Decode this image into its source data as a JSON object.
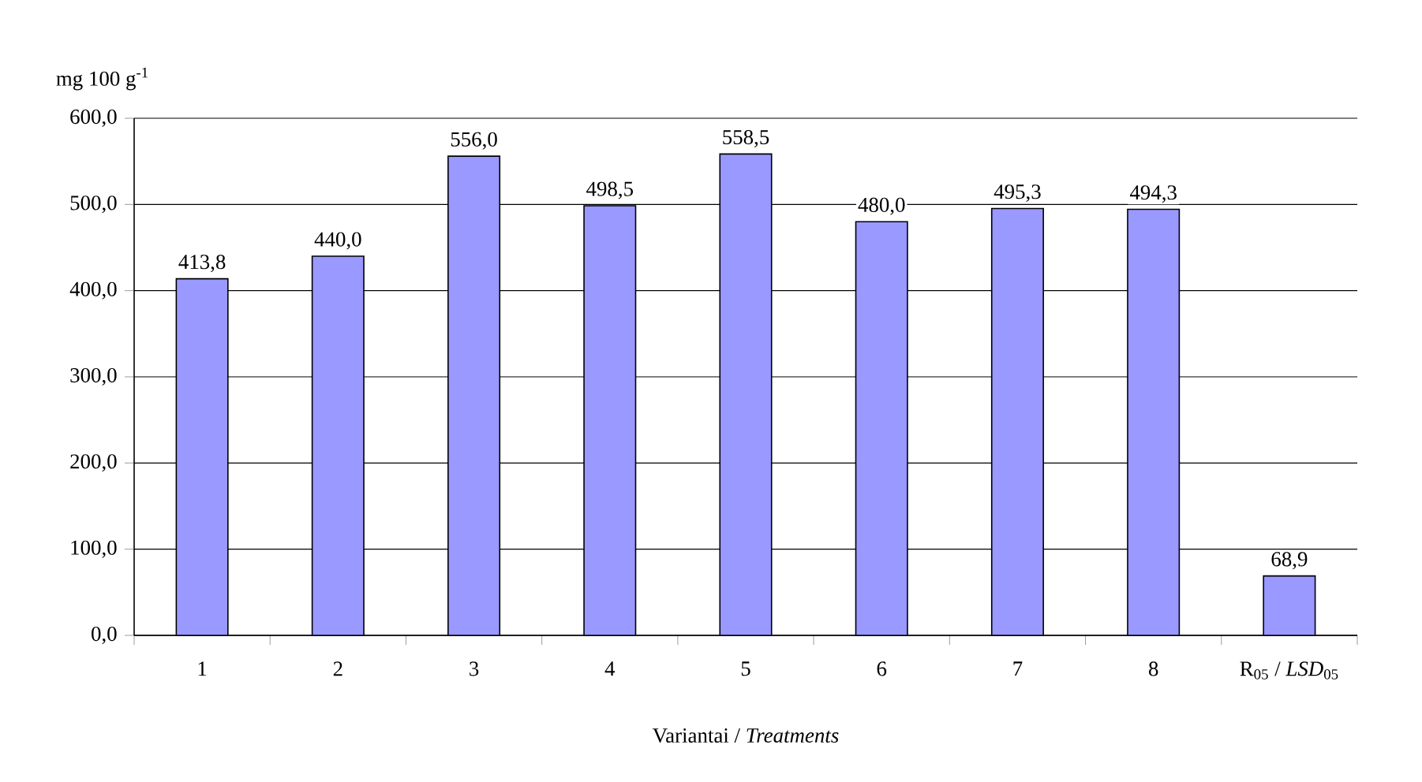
{
  "chart_data": {
    "type": "bar",
    "ylabel": "mg 100 g$^{-1}$",
    "xlabel": "Variantai / *Treatments*",
    "categories": [
      "1",
      "2",
      "3",
      "4",
      "5",
      "6",
      "7",
      "8",
      "R$_{05}$ / *LSD*$_{05}$"
    ],
    "values": [
      413.8,
      440.0,
      556.0,
      498.5,
      558.5,
      480.0,
      495.3,
      494.3,
      68.9
    ],
    "value_labels": [
      "413,8",
      "440,0",
      "556,0",
      "498,5",
      "558,5",
      "480,0",
      "495,3",
      "494,3",
      "68,9"
    ],
    "color": "#9999ff",
    "ylim": [
      0,
      600
    ],
    "yticks": [
      {
        "value": 0,
        "label": "0,0"
      },
      {
        "value": 100,
        "label": "100,0"
      },
      {
        "value": 200,
        "label": "200,0"
      },
      {
        "value": 300,
        "label": "300,0"
      },
      {
        "value": 400,
        "label": "400,0"
      },
      {
        "value": 500,
        "label": "500,0"
      },
      {
        "value": 600,
        "label": "600,0"
      }
    ],
    "grid": "y"
  }
}
